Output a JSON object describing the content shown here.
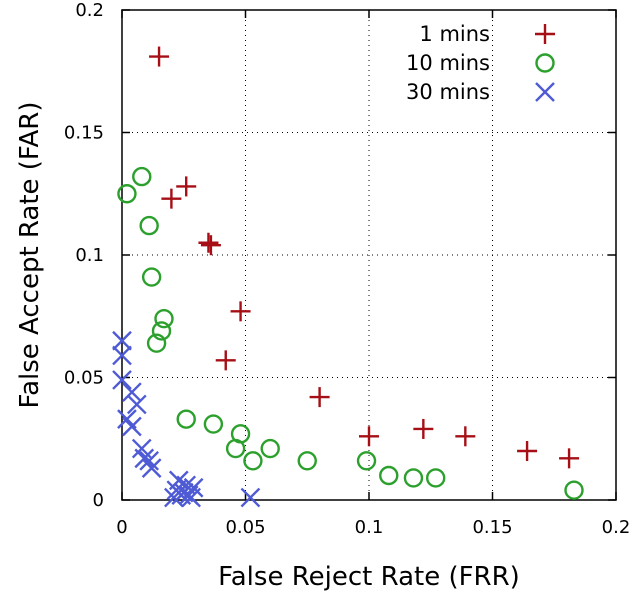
{
  "chart_data": {
    "type": "scatter",
    "xlabel": "False Reject Rate (FRR)",
    "ylabel": "False Accept Rate (FAR)",
    "xlim": [
      0,
      0.2
    ],
    "ylim": [
      0,
      0.2
    ],
    "x_ticks": [
      "0",
      "0.05",
      "0.1",
      "0.15",
      "0.2"
    ],
    "y_ticks": [
      "0",
      "0.05",
      "0.1",
      "0.15",
      "0.2"
    ],
    "grid": true,
    "legend_position": "top-right",
    "series": [
      {
        "name": "1 mins",
        "marker": "plus",
        "color": "#a50f15",
        "points": [
          [
            0.015,
            0.181
          ],
          [
            0.026,
            0.128
          ],
          [
            0.02,
            0.123
          ],
          [
            0.035,
            0.105
          ],
          [
            0.036,
            0.104
          ],
          [
            0.048,
            0.077
          ],
          [
            0.042,
            0.057
          ],
          [
            0.08,
            0.042
          ],
          [
            0.1,
            0.026
          ],
          [
            0.122,
            0.029
          ],
          [
            0.139,
            0.026
          ],
          [
            0.164,
            0.02
          ],
          [
            0.181,
            0.017
          ]
        ]
      },
      {
        "name": "10 mins",
        "marker": "circle",
        "color": "#2ca02c",
        "points": [
          [
            0.008,
            0.132
          ],
          [
            0.002,
            0.125
          ],
          [
            0.011,
            0.112
          ],
          [
            0.012,
            0.091
          ],
          [
            0.017,
            0.074
          ],
          [
            0.016,
            0.069
          ],
          [
            0.014,
            0.064
          ],
          [
            0.026,
            0.033
          ],
          [
            0.037,
            0.031
          ],
          [
            0.048,
            0.027
          ],
          [
            0.046,
            0.021
          ],
          [
            0.06,
            0.021
          ],
          [
            0.053,
            0.016
          ],
          [
            0.075,
            0.016
          ],
          [
            0.099,
            0.016
          ],
          [
            0.108,
            0.01
          ],
          [
            0.118,
            0.009
          ],
          [
            0.127,
            0.009
          ],
          [
            0.183,
            0.004
          ]
        ]
      },
      {
        "name": "30 mins",
        "marker": "x",
        "color": "#4f5bd5",
        "points": [
          [
            0.0,
            0.065
          ],
          [
            0.0,
            0.059
          ],
          [
            0.0,
            0.049
          ],
          [
            0.004,
            0.044
          ],
          [
            0.006,
            0.039
          ],
          [
            0.002,
            0.033
          ],
          [
            0.004,
            0.03
          ],
          [
            0.008,
            0.021
          ],
          [
            0.009,
            0.017
          ],
          [
            0.011,
            0.016
          ],
          [
            0.012,
            0.013
          ],
          [
            0.023,
            0.008
          ],
          [
            0.026,
            0.006
          ],
          [
            0.029,
            0.005
          ],
          [
            0.022,
            0.004
          ],
          [
            0.025,
            0.003
          ],
          [
            0.024,
            0.002
          ],
          [
            0.027,
            0.002
          ],
          [
            0.021,
            0.001
          ],
          [
            0.028,
            0.001
          ],
          [
            0.052,
            0.001
          ]
        ]
      }
    ]
  }
}
